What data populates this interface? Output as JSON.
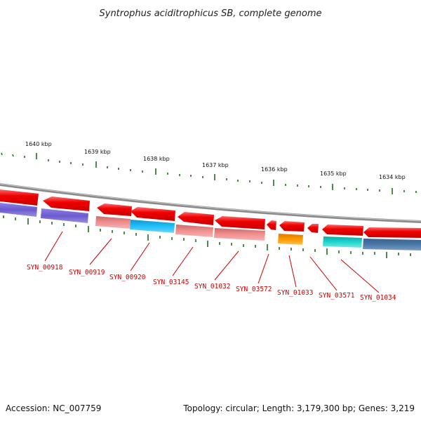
{
  "title": "Syntrophus aciditrophicus SB, complete genome",
  "accession": "Accession: NC_007759",
  "topology": "Topology: circular; Length: 3,179,300 bp; Genes: 3,219",
  "scale_labels": [
    "1640 kbp",
    "1639 kbp",
    "1638 kbp",
    "1637 kbp",
    "1636 kbp",
    "1635 kbp",
    "1634 kbp"
  ],
  "gene_labels": [
    "SYN_00918",
    "SYN_00919",
    "SYN_00920",
    "SYN_03145",
    "SYN_01032",
    "SYN_03572",
    "SYN_01033",
    "SYN_03571",
    "SYN_01034"
  ],
  "colors": {
    "backbone": "#8a8a8a",
    "forward": "#e00000",
    "purple": "#6a5acd",
    "salmon": "#e98080",
    "cyan": "#1fb6f0",
    "orange": "#ff9a00",
    "teal": "#1ec9c4",
    "steel": "#4a78a8",
    "tick": "#1f6e1f",
    "label": "#cc0000"
  }
}
